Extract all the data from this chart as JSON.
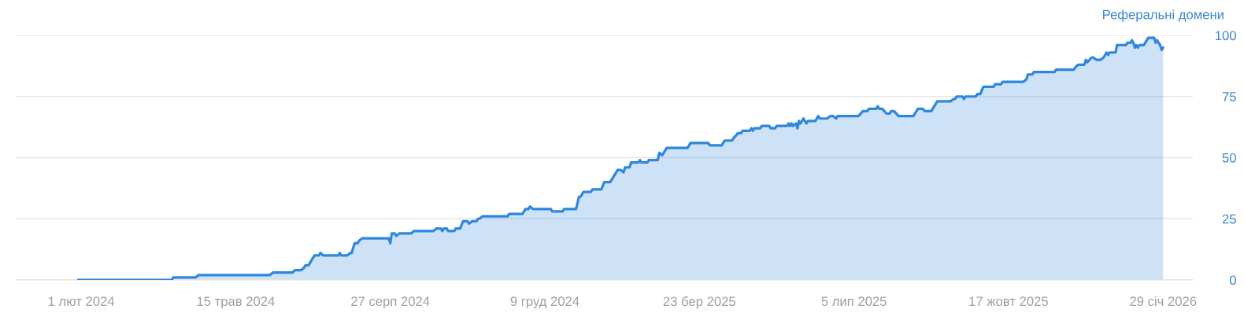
{
  "chart_data": {
    "type": "area",
    "ylabel": "Реферальні домени",
    "color": "#2e86de",
    "x": [
      "2024-01-30",
      "2024-04-02",
      "2024-04-03",
      "2024-04-18",
      "2024-04-20",
      "2024-06-07",
      "2024-06-09",
      "2024-06-22",
      "2024-06-24",
      "2024-06-28",
      "2024-06-30",
      "2024-07-01",
      "2024-07-03",
      "2024-07-05",
      "2024-07-07",
      "2024-07-10",
      "2024-07-11",
      "2024-07-13",
      "2024-07-23",
      "2024-07-24",
      "2024-07-25",
      "2024-07-29",
      "2024-07-31",
      "2024-08-01",
      "2024-08-03",
      "2024-08-05",
      "2024-08-06",
      "2024-08-08",
      "2024-08-26",
      "2024-08-27",
      "2024-08-28",
      "2024-08-30",
      "2024-08-31",
      "2024-09-02",
      "2024-09-10",
      "2024-09-12",
      "2024-09-25",
      "2024-09-27",
      "2024-09-30",
      "2024-10-01",
      "2024-10-02",
      "2024-10-04",
      "2024-10-05",
      "2024-10-09",
      "2024-10-10",
      "2024-10-13",
      "2024-10-15",
      "2024-10-18",
      "2024-10-19",
      "2024-10-21",
      "2024-10-24",
      "2024-10-25",
      "2024-10-26",
      "2024-10-28",
      "2024-11-14",
      "2024-11-15",
      "2024-11-24",
      "2024-11-26",
      "2024-11-28",
      "2024-11-29",
      "2024-12-01",
      "2024-12-13",
      "2024-12-14",
      "2024-12-21",
      "2024-12-22",
      "2024-12-30",
      "2025-01-01",
      "2025-01-02",
      "2025-01-04",
      "2025-01-09",
      "2025-01-10",
      "2025-01-16",
      "2025-01-18",
      "2025-01-22",
      "2025-01-27",
      "2025-01-29",
      "2025-01-31",
      "2025-02-01",
      "2025-02-04",
      "2025-02-05",
      "2025-02-10",
      "2025-02-11",
      "2025-02-12",
      "2025-02-16",
      "2025-02-17",
      "2025-02-23",
      "2025-02-24",
      "2025-02-26",
      "2025-03-01",
      "2025-03-15",
      "2025-03-17",
      "2025-03-29",
      "2025-03-30",
      "2025-04-07",
      "2025-04-09",
      "2025-04-14",
      "2025-04-15",
      "2025-04-18",
      "2025-04-20",
      "2025-04-21",
      "2025-04-26",
      "2025-04-27",
      "2025-04-28",
      "2025-04-29",
      "2025-05-03",
      "2025-05-04",
      "2025-05-09",
      "2025-05-10",
      "2025-05-13",
      "2025-05-14",
      "2025-05-21",
      "2025-05-22",
      "2025-05-23",
      "2025-05-24",
      "2025-05-25",
      "2025-05-27",
      "2025-05-28",
      "2025-05-29",
      "2025-05-30",
      "2025-06-01",
      "2025-06-03",
      "2025-06-04",
      "2025-06-09",
      "2025-06-11",
      "2025-06-12",
      "2025-06-17",
      "2025-06-19",
      "2025-06-21",
      "2025-06-23",
      "2025-06-24",
      "2025-07-08",
      "2025-07-11",
      "2025-07-14",
      "2025-07-15",
      "2025-07-20",
      "2025-07-21",
      "2025-07-22",
      "2025-07-24",
      "2025-07-27",
      "2025-07-29",
      "2025-07-30",
      "2025-08-01",
      "2025-08-04",
      "2025-08-14",
      "2025-08-15",
      "2025-08-17",
      "2025-08-20",
      "2025-08-22",
      "2025-08-26",
      "2025-08-30",
      "2025-09-08",
      "2025-09-10",
      "2025-09-11",
      "2025-09-12",
      "2025-09-16",
      "2025-09-17",
      "2025-09-18",
      "2025-09-25",
      "2025-09-26",
      "2025-09-28",
      "2025-09-30",
      "2025-10-07",
      "2025-10-08",
      "2025-10-12",
      "2025-10-13",
      "2025-10-27",
      "2025-10-29",
      "2025-10-30",
      "2025-11-02",
      "2025-11-03",
      "2025-11-17",
      "2025-11-18",
      "2025-11-30",
      "2025-12-01",
      "2025-12-03",
      "2025-12-07",
      "2025-12-08",
      "2025-12-09",
      "2025-12-12",
      "2025-12-13",
      "2025-12-15",
      "2025-12-18",
      "2025-12-20",
      "2025-12-22",
      "2025-12-23",
      "2025-12-24",
      "2025-12-28",
      "2025-12-29",
      "2026-01-04",
      "2026-01-05",
      "2026-01-07",
      "2026-01-08",
      "2026-01-09",
      "2026-01-10",
      "2026-01-11",
      "2026-01-12",
      "2026-01-13",
      "2026-01-16",
      "2026-01-17",
      "2026-01-19",
      "2026-01-23",
      "2026-01-24",
      "2026-01-25",
      "2026-01-27",
      "2026-01-28",
      "2026-01-29"
    ],
    "values": [
      0,
      0,
      1,
      1,
      2,
      2,
      3,
      3,
      4,
      4,
      5,
      6,
      6,
      8,
      10,
      10,
      11,
      10,
      10,
      11,
      10,
      10,
      11,
      11,
      15,
      15,
      16,
      17,
      17,
      15,
      19,
      19,
      18,
      19,
      19,
      20,
      20,
      21,
      21,
      20,
      21,
      21,
      20,
      20,
      21,
      21,
      24,
      24,
      23,
      24,
      24,
      25,
      25,
      26,
      26,
      27,
      27,
      29,
      29,
      30,
      29,
      29,
      28,
      28,
      29,
      29,
      34,
      34,
      36,
      36,
      37,
      37,
      40,
      40,
      45,
      45,
      44,
      46,
      46,
      48,
      48,
      49,
      48,
      48,
      49,
      49,
      52,
      51,
      54,
      54,
      56,
      56,
      55,
      55,
      57,
      57,
      58,
      60,
      60,
      61,
      61,
      62,
      61,
      62,
      62,
      63,
      63,
      62,
      62,
      63,
      63,
      64,
      63,
      64,
      63,
      64,
      62,
      65,
      64,
      66,
      64,
      65,
      65,
      67,
      66,
      66,
      67,
      67,
      66,
      67,
      67,
      69,
      69,
      70,
      70,
      71,
      70,
      70,
      68,
      68,
      69,
      69,
      67,
      67,
      68,
      70,
      70,
      69,
      69,
      73,
      73,
      74,
      74,
      75,
      75,
      74,
      75,
      75,
      76,
      76,
      79,
      79,
      80,
      80,
      81,
      81,
      82,
      84,
      84,
      85,
      85,
      86,
      86,
      87,
      88,
      88,
      90,
      89,
      91,
      91,
      90,
      90,
      91,
      93,
      92,
      93,
      93,
      96,
      96,
      97,
      97,
      98,
      97,
      95,
      96,
      95,
      96,
      96,
      97,
      99,
      99,
      97,
      98,
      96,
      94,
      95
    ],
    "xlim": [
      "2023-12-19",
      "2026-02-18"
    ],
    "xticks": [
      {
        "value": "2024-02-01",
        "label": "1 лют 2024"
      },
      {
        "value": "2024-05-15",
        "label": "15 трав 2024"
      },
      {
        "value": "2024-08-27",
        "label": "27 серп 2024"
      },
      {
        "value": "2024-12-09",
        "label": "9 груд 2024"
      },
      {
        "value": "2025-03-23",
        "label": "23 бер 2025"
      },
      {
        "value": "2025-07-05",
        "label": "5 лип 2025"
      },
      {
        "value": "2025-10-17",
        "label": "17 жовт 2025"
      },
      {
        "value": "2026-01-29",
        "label": "29 січ 2026"
      }
    ],
    "ylim": [
      0,
      100
    ],
    "yticks": [
      0,
      25,
      50,
      75,
      100
    ],
    "grid": "y"
  }
}
